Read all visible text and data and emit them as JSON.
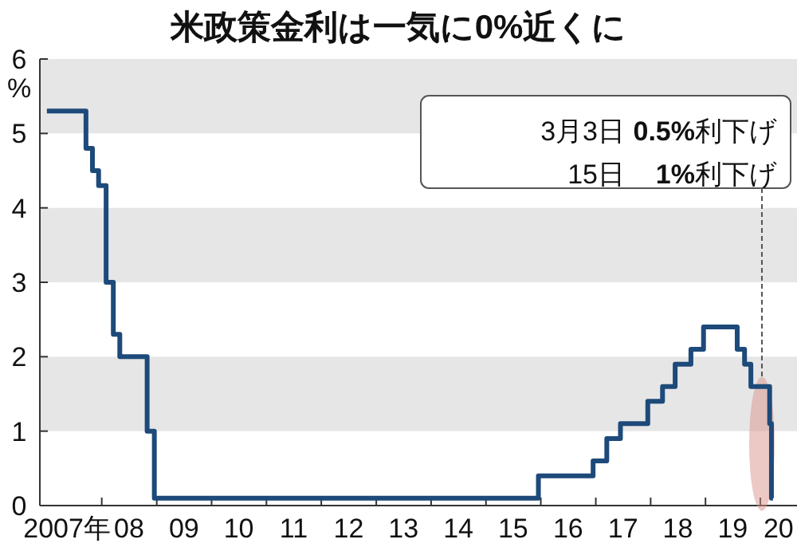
{
  "chart_data": {
    "type": "step",
    "title": "米政策金利は一気に0%近くに",
    "ylabel": "%",
    "ylim": [
      0,
      6
    ],
    "yticks": [
      0,
      1,
      2,
      3,
      4,
      5,
      6
    ],
    "xlim": [
      "2006-11-15",
      "2020-09-01"
    ],
    "xticks": [
      {
        "value": "2007-05-15",
        "label": "2007年"
      },
      {
        "value": "2008-01-01",
        "label": null
      },
      {
        "value": "2008-07-01",
        "label": "08"
      },
      {
        "value": "2009-01-01",
        "label": null
      },
      {
        "value": "2009-07-01",
        "label": "09"
      },
      {
        "value": "2010-01-01",
        "label": null
      },
      {
        "value": "2010-07-01",
        "label": "10"
      },
      {
        "value": "2011-01-01",
        "label": null
      },
      {
        "value": "2011-07-01",
        "label": "11"
      },
      {
        "value": "2012-01-01",
        "label": null
      },
      {
        "value": "2012-07-01",
        "label": "12"
      },
      {
        "value": "2013-01-01",
        "label": null
      },
      {
        "value": "2013-07-01",
        "label": "13"
      },
      {
        "value": "2014-01-01",
        "label": null
      },
      {
        "value": "2014-07-01",
        "label": "14"
      },
      {
        "value": "2015-01-01",
        "label": null
      },
      {
        "value": "2015-07-01",
        "label": "15"
      },
      {
        "value": "2016-01-01",
        "label": null
      },
      {
        "value": "2016-07-01",
        "label": "16"
      },
      {
        "value": "2017-01-01",
        "label": null
      },
      {
        "value": "2017-07-01",
        "label": "17"
      },
      {
        "value": "2018-01-01",
        "label": null
      },
      {
        "value": "2018-07-01",
        "label": "18"
      },
      {
        "value": "2019-01-01",
        "label": null
      },
      {
        "value": "2019-07-01",
        "label": "19"
      },
      {
        "value": "2020-01-01",
        "label": null
      },
      {
        "value": "2020-05-01",
        "label": "20"
      }
    ],
    "bands": [
      {
        "axis": "y",
        "from": 1,
        "to": 2,
        "color": "#e6e6e6"
      },
      {
        "axis": "y",
        "from": 3,
        "to": 4,
        "color": "#e6e6e6"
      },
      {
        "axis": "y",
        "from": 5,
        "to": 6,
        "color": "#e6e6e6"
      }
    ],
    "series": [
      {
        "color": "#1d4a7a",
        "x": [
          "2007-01-01",
          "2007-09-18",
          "2007-10-31",
          "2007-12-11",
          "2008-01-30",
          "2008-03-18",
          "2008-04-30",
          "2008-10-29",
          "2008-12-16",
          "2015-12-16",
          "2016-12-14",
          "2017-03-15",
          "2017-06-14",
          "2017-12-13",
          "2018-03-21",
          "2018-06-13",
          "2018-09-26",
          "2018-12-19",
          "2019-07-31",
          "2019-09-18",
          "2019-10-30",
          "2020-03-03",
          "2020-03-15",
          "2020-03-25"
        ],
        "values": [
          5.3,
          4.8,
          4.5,
          4.3,
          3,
          2.3,
          2,
          1,
          0.1,
          0.4,
          0.6,
          0.9,
          1.1,
          1.4,
          1.6,
          1.9,
          2.1,
          2.4,
          2.1,
          1.9,
          1.6,
          1.1,
          0.1,
          0.1
        ]
      }
    ],
    "annotations": [
      "3月3日 0.5%利下げ",
      "15日 1%利下げ"
    ]
  }
}
